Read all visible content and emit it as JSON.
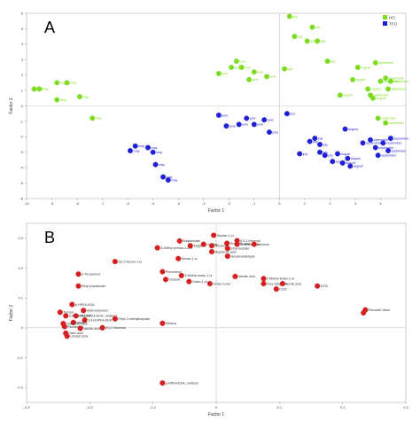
{
  "chart_data": [
    {
      "panel": "A",
      "type": "scatter",
      "xlabel": "Factor 1",
      "ylabel": "Factor 2",
      "xlim": [
        -10,
        5
      ],
      "ylim": [
        -6,
        6
      ],
      "xticks": [
        -10,
        -9,
        -8,
        -7,
        -6,
        -5,
        -4,
        -3,
        -2,
        -1,
        0,
        1,
        2,
        3,
        4
      ],
      "yticks": [
        -6,
        -5,
        -4,
        -3,
        -2,
        -1,
        0,
        1,
        2,
        3,
        4,
        5,
        6
      ],
      "legend_position": "top-right",
      "series": [
        {
          "name": "HO",
          "color": "#7ddc1f",
          "points": [
            {
              "x": -9.7,
              "y": 1.1,
              "label": "may"
            },
            {
              "x": -9.5,
              "y": 1.1,
              "label": "may"
            },
            {
              "x": -8.8,
              "y": 1.5,
              "label": "may"
            },
            {
              "x": -8.4,
              "y": 1.5,
              "label": "may"
            },
            {
              "x": -8.8,
              "y": 0.4,
              "label": "may"
            },
            {
              "x": -7.9,
              "y": 0.6,
              "label": "may"
            },
            {
              "x": -7.4,
              "y": -0.8,
              "label": "may"
            },
            {
              "x": -2.4,
              "y": 2.1,
              "label": "june"
            },
            {
              "x": -1.9,
              "y": 2.5,
              "label": "june"
            },
            {
              "x": -1.7,
              "y": 2.9,
              "label": "june"
            },
            {
              "x": -1.5,
              "y": 2.5,
              "label": "june"
            },
            {
              "x": -1.0,
              "y": 2.2,
              "label": "june"
            },
            {
              "x": -1.2,
              "y": 1.7,
              "label": "june"
            },
            {
              "x": -0.5,
              "y": 1.9,
              "label": "june"
            },
            {
              "x": 0.2,
              "y": 2.4,
              "label": "july"
            },
            {
              "x": 0.4,
              "y": 5.8,
              "label": "july"
            },
            {
              "x": 0.6,
              "y": 4.5,
              "label": "july"
            },
            {
              "x": 1.1,
              "y": 4.2,
              "label": "july"
            },
            {
              "x": 1.5,
              "y": 4.2,
              "label": "july"
            },
            {
              "x": 1.9,
              "y": 2.9,
              "label": "july"
            },
            {
              "x": 1.3,
              "y": 5.1,
              "label": "july"
            },
            {
              "x": 2.4,
              "y": 0.7,
              "label": "august"
            },
            {
              "x": 2.9,
              "y": 1.7,
              "label": "august"
            },
            {
              "x": 3.1,
              "y": 2.5,
              "label": "august"
            },
            {
              "x": 3.5,
              "y": 1.1,
              "label": "august"
            },
            {
              "x": 3.7,
              "y": 0.5,
              "label": "august"
            },
            {
              "x": 3.8,
              "y": 2.8,
              "label": "september"
            },
            {
              "x": 4.0,
              "y": 1.6,
              "label": "september"
            },
            {
              "x": 4.2,
              "y": 1.8,
              "label": "september"
            },
            {
              "x": 4.4,
              "y": 1.6,
              "label": "september"
            },
            {
              "x": 4.3,
              "y": 1.1,
              "label": "september"
            },
            {
              "x": 3.6,
              "y": 0.7,
              "label": "september"
            },
            {
              "x": 3.9,
              "y": -0.8,
              "label": "september"
            },
            {
              "x": 4.2,
              "y": -1.1,
              "label": "september"
            }
          ]
        },
        {
          "name": "TFO",
          "color": "#1f1fd6",
          "points": [
            {
              "x": -5.9,
              "y": -2.9,
              "label": "may"
            },
            {
              "x": -5.7,
              "y": -2.6,
              "label": "may"
            },
            {
              "x": -5.2,
              "y": -2.7,
              "label": "may"
            },
            {
              "x": -5.0,
              "y": -3.0,
              "label": "may"
            },
            {
              "x": -4.9,
              "y": -3.8,
              "label": "may"
            },
            {
              "x": -4.6,
              "y": -4.6,
              "label": "may"
            },
            {
              "x": -4.4,
              "y": -4.8,
              "label": "may"
            },
            {
              "x": -2.4,
              "y": -0.6,
              "label": "june"
            },
            {
              "x": -2.1,
              "y": -1.3,
              "label": "june"
            },
            {
              "x": -1.6,
              "y": -1.2,
              "label": "june"
            },
            {
              "x": -1.3,
              "y": -0.8,
              "label": "june"
            },
            {
              "x": -1.0,
              "y": -1.2,
              "label": "june"
            },
            {
              "x": -0.6,
              "y": -0.9,
              "label": "june"
            },
            {
              "x": -0.4,
              "y": -1.7,
              "label": "june"
            },
            {
              "x": 0.3,
              "y": -0.5,
              "label": "july"
            },
            {
              "x": 0.8,
              "y": -3.1,
              "label": "july"
            },
            {
              "x": 1.2,
              "y": -2.3,
              "label": "july"
            },
            {
              "x": 1.4,
              "y": -2.1,
              "label": "july"
            },
            {
              "x": 1.6,
              "y": -2.5,
              "label": "july"
            },
            {
              "x": 1.6,
              "y": -3.0,
              "label": "july"
            },
            {
              "x": 1.8,
              "y": -3.2,
              "label": "july"
            },
            {
              "x": 2.1,
              "y": -3.6,
              "label": "august"
            },
            {
              "x": 2.3,
              "y": -3.1,
              "label": "august"
            },
            {
              "x": 2.5,
              "y": -3.7,
              "label": "august"
            },
            {
              "x": 2.6,
              "y": -1.5,
              "label": "august"
            },
            {
              "x": 2.7,
              "y": -3.4,
              "label": "august"
            },
            {
              "x": 2.8,
              "y": -3.9,
              "label": "august"
            },
            {
              "x": 3.3,
              "y": -2.4,
              "label": "september"
            },
            {
              "x": 3.6,
              "y": -2.2,
              "label": "september"
            },
            {
              "x": 3.8,
              "y": -2.7,
              "label": "september"
            },
            {
              "x": 4.1,
              "y": -2.4,
              "label": "september"
            },
            {
              "x": 4.3,
              "y": -2.9,
              "label": "september"
            },
            {
              "x": 4.4,
              "y": -2.1,
              "label": "september"
            },
            {
              "x": 3.9,
              "y": -3.2,
              "label": "september"
            }
          ]
        }
      ]
    },
    {
      "panel": "B",
      "type": "scatter",
      "xlabel": "Factor 1",
      "ylabel": "Factor 2",
      "xlim": [
        -0.3,
        0.3
      ],
      "ylim": [
        -0.25,
        0.35
      ],
      "xticks": [
        -0.3,
        -0.2,
        -0.1,
        0,
        0.1,
        0.2,
        0.3
      ],
      "yticks": [
        -0.2,
        -0.1,
        0,
        0.1,
        0.2,
        0.3
      ],
      "series": [
        {
          "name": "",
          "color": "#d42020",
          "points": [
            {
              "x": -0.058,
              "y": 0.291,
              "label": "Butylacetate"
            },
            {
              "x": -0.093,
              "y": 0.268,
              "label": "3-Methyl pentan-2-one"
            },
            {
              "x": -0.041,
              "y": 0.275,
              "label": "Apigenin"
            },
            {
              "x": -0.02,
              "y": 0.28,
              "label": "Luteolin"
            },
            {
              "x": -0.007,
              "y": 0.275,
              "label": "Nonanal"
            },
            {
              "x": -0.007,
              "y": 0.255,
              "label": "Heptanoic acid"
            },
            {
              "x": -0.004,
              "y": 0.31,
              "label": "Heptan-2-ol"
            },
            {
              "x": 0.017,
              "y": 0.283,
              "label": "Propionic acid"
            },
            {
              "x": 0.033,
              "y": 0.292,
              "label": "(E)-2-Hexenal"
            },
            {
              "x": 0.033,
              "y": 0.28,
              "label": "Butanoic acid"
            },
            {
              "x": 0.06,
              "y": 0.28,
              "label": "Hexanal"
            },
            {
              "x": 0.018,
              "y": 0.266,
              "label": "Ethyl acetate"
            },
            {
              "x": 0.018,
              "y": 0.24,
              "label": "Isovaleraldehyde"
            },
            {
              "x": -0.06,
              "y": 0.232,
              "label": "Hexan-1-ol"
            },
            {
              "x": -0.16,
              "y": 0.222,
              "label": "(E)-2-Hexen-1-ol"
            },
            {
              "x": -0.085,
              "y": 0.188,
              "label": "Pinoresinol"
            },
            {
              "x": -0.218,
              "y": 0.18,
              "label": "o-Tocopherol"
            },
            {
              "x": -0.218,
              "y": 0.14,
              "label": "Ethyl propanoate"
            },
            {
              "x": -0.08,
              "y": 0.162,
              "label": "Octanal"
            },
            {
              "x": -0.055,
              "y": 0.175,
              "label": "3-Methyl butan-1-ol"
            },
            {
              "x": -0.043,
              "y": 0.155,
              "label": "Octan-1-ol"
            },
            {
              "x": -0.01,
              "y": 0.148,
              "label": "Octan-3-one"
            },
            {
              "x": 0.03,
              "y": 0.172,
              "label": "Vanillic acid"
            },
            {
              "x": 0.075,
              "y": 0.165,
              "label": "2-Methyl butan-1-ol"
            },
            {
              "x": 0.075,
              "y": 0.148,
              "label": "Free fatty acid"
            },
            {
              "x": 0.105,
              "y": 0.148,
              "label": "Acetic acid"
            },
            {
              "x": 0.095,
              "y": 0.13,
              "label": "K232"
            },
            {
              "x": 0.16,
              "y": 0.14,
              "label": "K270"
            },
            {
              "x": 0.236,
              "y": 0.06,
              "label": "Peroxide Value"
            },
            {
              "x": 0.233,
              "y": 0.05,
              "label": ""
            },
            {
              "x": -0.228,
              "y": 0.078,
              "label": "p-HPEA-EDA"
            },
            {
              "x": -0.21,
              "y": 0.058,
              "label": "Hydroxytyrosol"
            },
            {
              "x": -0.247,
              "y": 0.052,
              "label": "Tyrosol"
            },
            {
              "x": -0.238,
              "y": 0.04,
              "label": "3,4-DHPEA-EA"
            },
            {
              "x": -0.222,
              "y": 0.04,
              "label": "3,4-DHPEA-EDA, oxidised"
            },
            {
              "x": -0.208,
              "y": 0.026,
              "label": "3,4-DHPEA-EDA"
            },
            {
              "x": -0.226,
              "y": 0.018,
              "label": "Vanillin"
            },
            {
              "x": -0.242,
              "y": 0.014,
              "label": "Total phenolics"
            },
            {
              "x": -0.24,
              "y": 0.004,
              "label": "Pinoresinol"
            },
            {
              "x": -0.215,
              "y": -0.002,
              "label": "Vanillic acid"
            },
            {
              "x": -0.18,
              "y": 0.0,
              "label": "(E)-2-Nonenal"
            },
            {
              "x": -0.16,
              "y": 0.03,
              "label": "Ethyl 2-methylbutyrate"
            },
            {
              "x": -0.238,
              "y": -0.018,
              "label": "Oleic acid"
            },
            {
              "x": -0.236,
              "y": -0.028,
              "label": "Linoleic acid"
            },
            {
              "x": -0.085,
              "y": 0.015,
              "label": "Ethanol"
            },
            {
              "x": -0.085,
              "y": -0.185,
              "label": "p-HPEA-EDA, oxidised"
            }
          ]
        }
      ]
    }
  ]
}
